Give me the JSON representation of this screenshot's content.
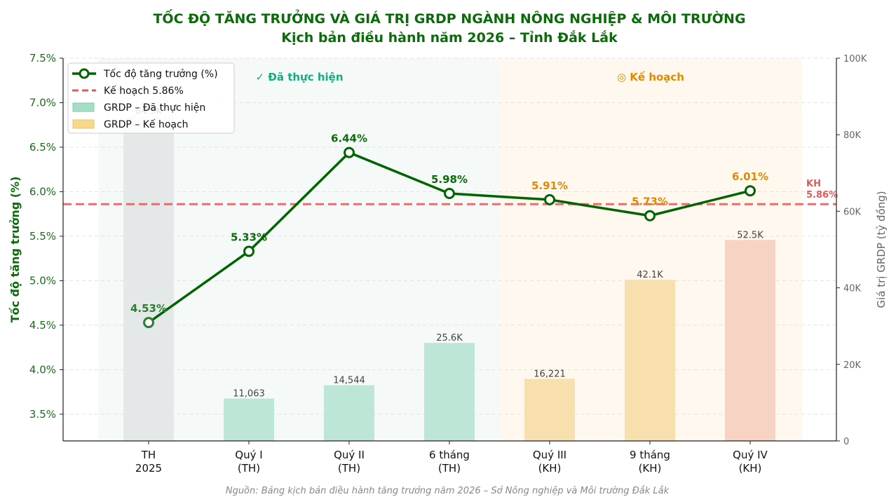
{
  "chart_data": {
    "type": "bar+line",
    "title_line1": "TỐC ĐỘ TĂNG TRƯỞNG VÀ GIÁ TRỊ GRDP NGÀNH NÔNG NGHIỆP & MÔI TRƯỜNG",
    "title_line2": "Kịch bản điều hành năm 2026 – Tỉnh Đắk Lắk",
    "ylabel_left": "Tốc độ tăng trưởng (%)",
    "ylabel_right": "Giá trị GRDP (tỷ đồng)",
    "ylim_left": [
      3.2,
      7.5
    ],
    "ylim_right": [
      0,
      100000
    ],
    "yticks_left": [
      "3.5%",
      "4.0%",
      "4.5%",
      "5.0%",
      "5.5%",
      "6.0%",
      "6.5%",
      "7.0%",
      "7.5%"
    ],
    "yticks_left_values": [
      3.5,
      4.0,
      4.5,
      5.0,
      5.5,
      6.0,
      6.5,
      7.0,
      7.5
    ],
    "yticks_right": [
      "0",
      "20K",
      "40K",
      "60K",
      "80K",
      "100K"
    ],
    "yticks_right_values": [
      0,
      20000,
      40000,
      60000,
      80000,
      100000
    ],
    "categories": [
      [
        "TH",
        "2025"
      ],
      [
        "Quý I",
        "(TH)"
      ],
      [
        "Quý II",
        "(TH)"
      ],
      [
        "6 tháng",
        "(TH)"
      ],
      [
        "Quý III",
        "(KH)"
      ],
      [
        "9 tháng",
        "(KH)"
      ],
      [
        "Quý IV",
        "(KH)"
      ]
    ],
    "bars": {
      "values": [
        84900,
        11063,
        14544,
        25600,
        16221,
        42100,
        52500
      ],
      "labels": [
        "84.9K",
        "11,063",
        "14,544",
        "25.6K",
        "16,221",
        "42.1K",
        "52.5K"
      ],
      "colors": [
        "#e4e8e8",
        "#bde6d6",
        "#bde6d6",
        "#bde6d6",
        "#f7e0ad",
        "#f7e0ad",
        "#f6d3c3"
      ]
    },
    "growth": {
      "name": "Tốc độ tăng trưởng (%)",
      "values": [
        4.53,
        5.33,
        6.44,
        5.98,
        5.91,
        5.73,
        6.01
      ],
      "labels": [
        "4.53%",
        "5.33%",
        "6.44%",
        "5.98%",
        "5.91%",
        "5.73%",
        "6.01%"
      ],
      "label_colors": [
        "#2e7d32",
        "#0b6b0b",
        "#0b6b0b",
        "#0b6b0b",
        "#e08a00",
        "#e08a00",
        "#e08a00"
      ],
      "line_color": "#006400"
    },
    "target": {
      "value": 5.86,
      "legend": "Kế hoạch 5.86%",
      "label_line1": "KH",
      "label_line2": "5.86%",
      "color": "#e05a5a"
    },
    "regions": {
      "done_label": "✓ Đã thực hiện",
      "plan_label": "◎ Kế hoạch",
      "done_color": "#1aaa80",
      "plan_color": "#e08a00"
    },
    "legend": [
      {
        "label": "Tốc độ tăng trưởng (%)",
        "kind": "line-marker",
        "color": "#006400"
      },
      {
        "label": "Kế hoạch 5.86%",
        "kind": "dashed",
        "color": "#e05a5a"
      },
      {
        "label": "GRDP – Đã thực hiện",
        "kind": "patch",
        "color": "#a7ddc6",
        "edge": "#7fcbaa"
      },
      {
        "label": "GRDP – Kế hoạch",
        "kind": "patch",
        "color": "#f7d98e",
        "edge": "#eec36a"
      }
    ],
    "legend_placement": "top-left",
    "grid": true,
    "source": "Nguồn: Bảng kịch bản điều hành tăng trưởng năm 2026 – Sở Nông nghiệp và Môi trường Đắk Lắk"
  }
}
